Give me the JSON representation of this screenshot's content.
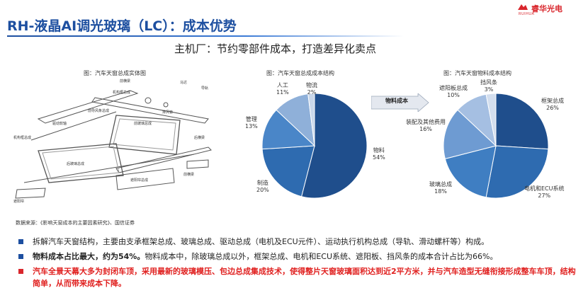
{
  "logo": {
    "brand": "睿华光电",
    "sub": "RUIHUA"
  },
  "header": {
    "title": "RH-液晶AI调光玻璃（LC）：成本优势",
    "subtitle": "主机厂：节约零部件成本，打造差异化卖点"
  },
  "figure1": {
    "caption": "图：汽车天窗总成实体图",
    "parts": [
      "前横梁",
      "机构框总成",
      "导轨",
      "马达",
      "前导风条总成",
      "驱动软轴",
      "前玻璃总成",
      "排风管",
      "后玻璃总成",
      "机构框总成",
      "遮阳帘总成",
      "后横梁",
      "遮阳帘",
      "前横梁"
    ]
  },
  "figure2": {
    "caption": "图：汽车天窗总成成本结构",
    "labels": [
      {
        "name": "物料",
        "pct": "54%"
      },
      {
        "name": "制造",
        "pct": "20%"
      },
      {
        "name": "管理",
        "pct": "13%"
      },
      {
        "name": "人工",
        "pct": "11%"
      },
      {
        "name": "物流",
        "pct": "2%"
      }
    ]
  },
  "arrow": {
    "label": "物料成本"
  },
  "figure3": {
    "caption": "图：汽车天窗物料成本结构",
    "labels": [
      {
        "name": "框架总成",
        "pct": "26%"
      },
      {
        "name": "电机和ECU系统",
        "pct": "27%"
      },
      {
        "name": "玻璃总成",
        "pct": "18%"
      },
      {
        "name": "装配及其他费用",
        "pct": "16%"
      },
      {
        "name": "遮阳板总成",
        "pct": "10%"
      },
      {
        "name": "挡风条",
        "pct": "3%"
      }
    ]
  },
  "source": "数据来源：《影响天窗成本的主要因素研究》、国信证券",
  "bullets": {
    "b1": "拆解汽车天窗结构，主要由支承框架总成、玻璃总成、驱动总成（电机及ECU元件）、运动执行机构总成（导轨、滑动螺杆等）构成。",
    "b2_bold": "物料成本占比最大，约为54%。",
    "b2_rest": "物料成本中，除玻璃总成以外，框架总成、电机和ECU系统、遮阳板、挡风条的成本合计占比为66%。",
    "b3": "汽车全景天幕大多为封闭车顶，采用最新的玻璃模压、包边总成集成技术，使得整片天窗玻璃面积达到近2平方米，并与汽车造型无缝衔接形成整车车顶，结构简单，从而带来成本下降。"
  },
  "colors": {
    "accent": "#1d4fa0",
    "brand_red": "#d9262c"
  },
  "chart_data": [
    {
      "type": "pie",
      "title": "图：汽车天窗总成成本结构",
      "categories": [
        "物料",
        "制造",
        "管理",
        "人工",
        "物流"
      ],
      "values": [
        54,
        20,
        13,
        11,
        2
      ],
      "colors": [
        "#1f4e8c",
        "#2e6bb0",
        "#4a86c8",
        "#8fb0d9",
        "#c9d7ea"
      ]
    },
    {
      "type": "pie",
      "title": "图：汽车天窗物料成本结构",
      "categories": [
        "框架总成",
        "电机和ECU系统",
        "玻璃总成",
        "装配及其他费用",
        "遮阳板总成",
        "挡风条"
      ],
      "values": [
        26,
        27,
        18,
        16,
        10,
        3
      ],
      "colors": [
        "#1f4e8c",
        "#2e6bb0",
        "#3f7ec2",
        "#6e9bd2",
        "#a5bfe2",
        "#d3deee"
      ]
    }
  ]
}
